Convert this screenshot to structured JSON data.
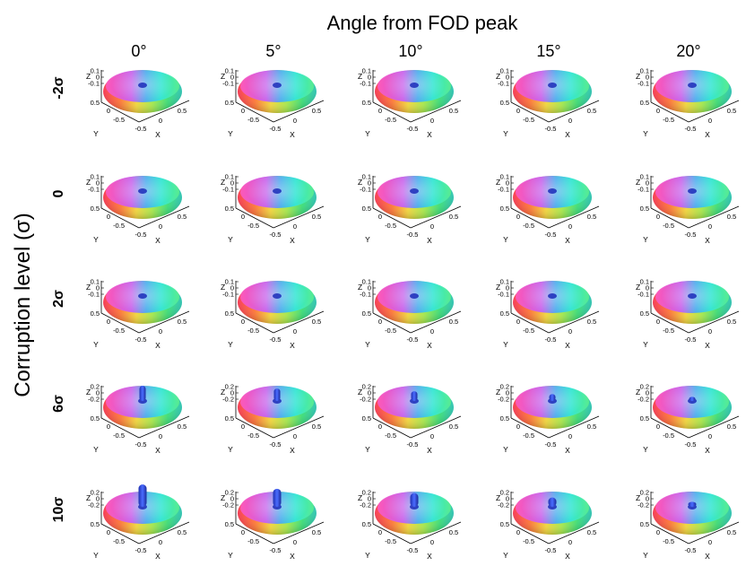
{
  "figure": {
    "title": "Angle from FOD peak",
    "row_axis_label": "Corruption level (σ)",
    "columns": [
      "0°",
      "5°",
      "10°",
      "15°",
      "20°"
    ],
    "rows": [
      {
        "label": "-2σ",
        "z_ticks": [
          "0.1",
          "0",
          "-0.1"
        ],
        "spike": 0
      },
      {
        "label": "0",
        "z_ticks": [
          "0.1",
          "0",
          "-0.1"
        ],
        "spike": 0
      },
      {
        "label": "2σ",
        "z_ticks": [
          "0.1",
          "0",
          "-0.1"
        ],
        "spike": 0
      },
      {
        "label": "6σ",
        "z_ticks": [
          "0.2",
          "0",
          "-0.2"
        ],
        "spike": 1
      },
      {
        "label": "10σ",
        "z_ticks": [
          "0.2",
          "0",
          "-0.2"
        ],
        "spike": 2
      }
    ],
    "panel_axes": {
      "z_label": "Z",
      "x_label": "X",
      "y_label": "Y",
      "y_ticks": [
        "0.5",
        "0",
        "-0.5"
      ],
      "x_ticks": [
        "-0.5",
        "0",
        "0.5"
      ]
    }
  }
}
